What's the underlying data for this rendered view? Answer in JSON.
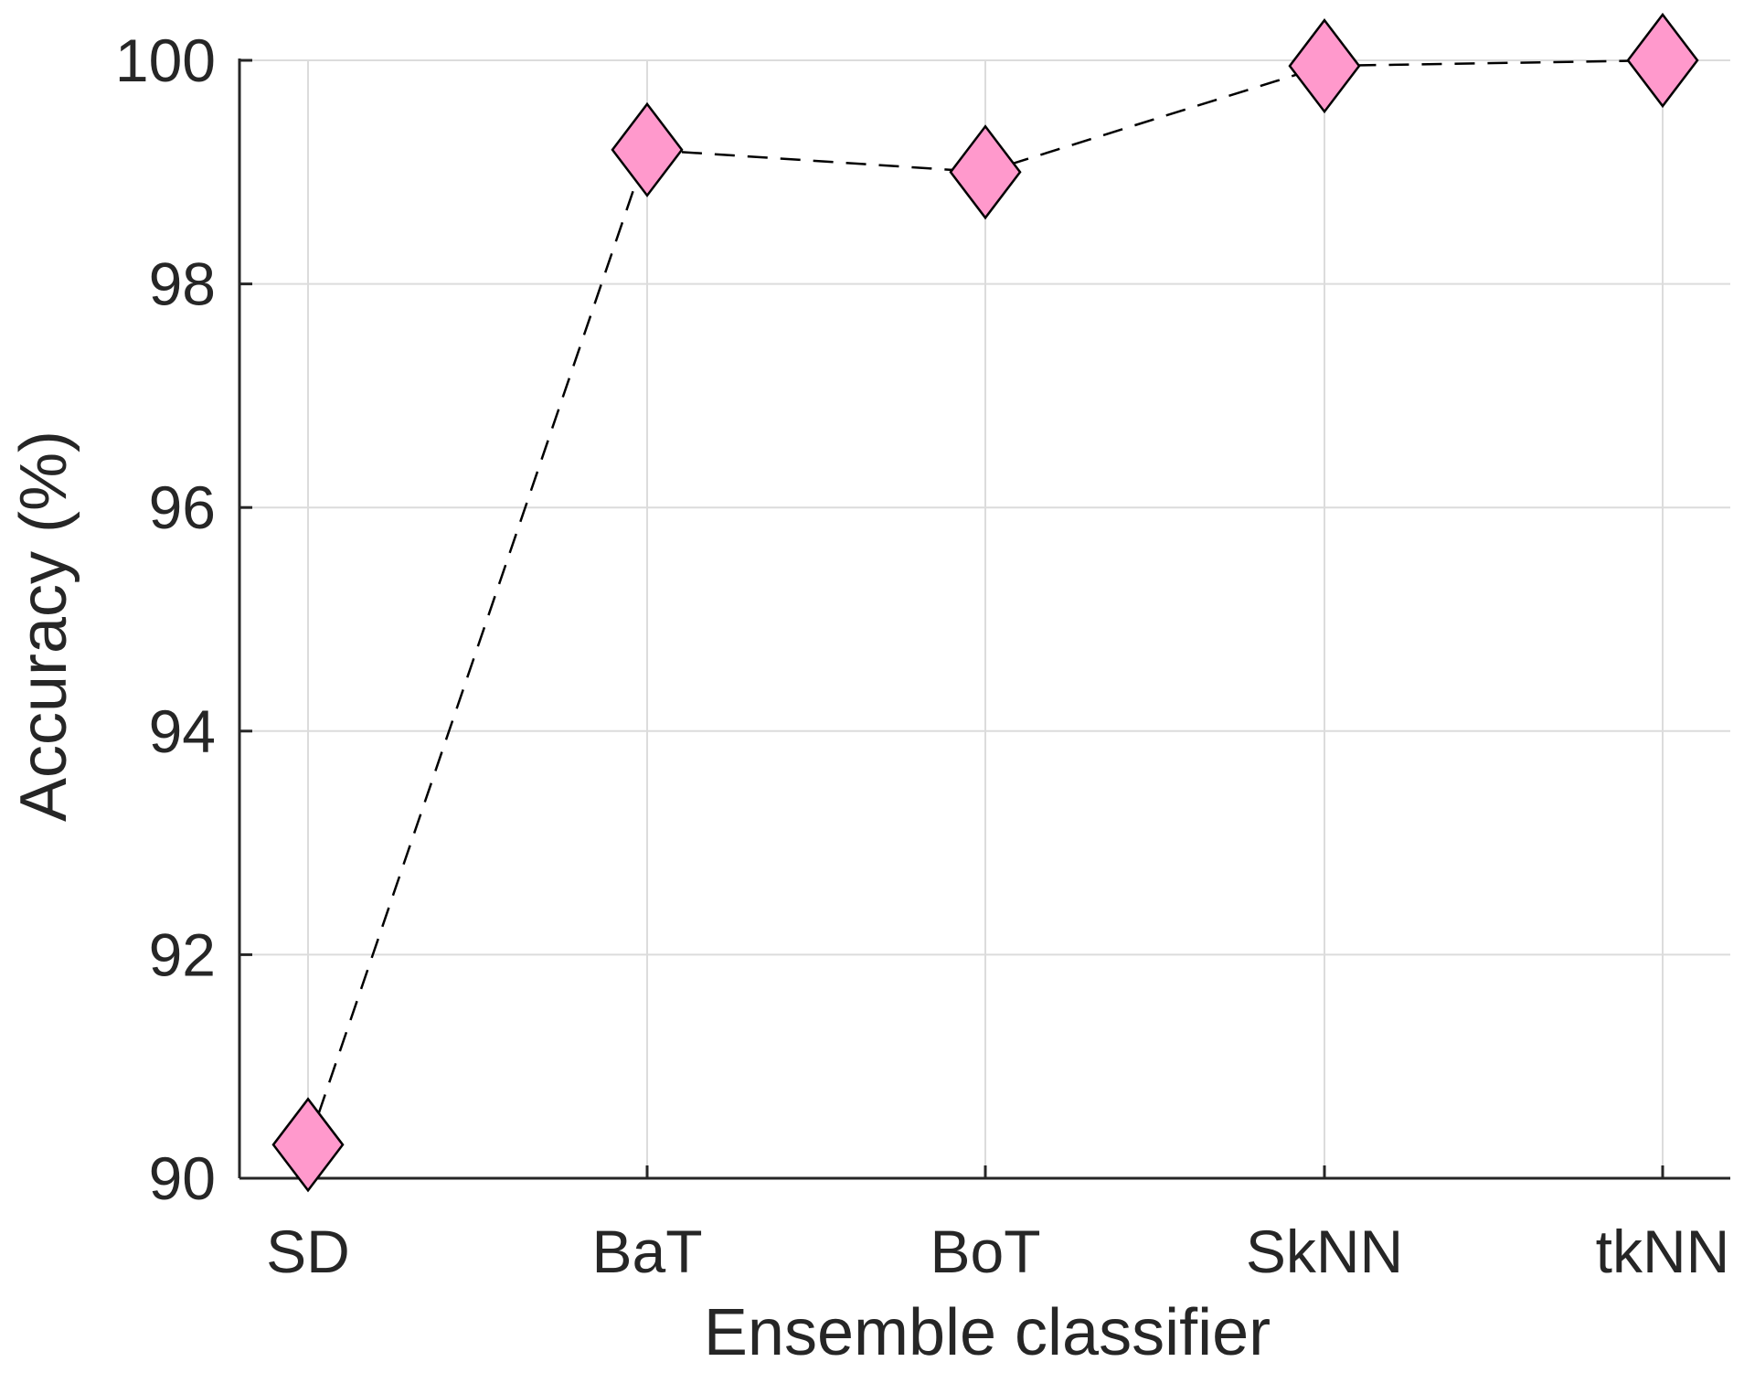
{
  "chart_data": {
    "type": "line",
    "categories": [
      "SD",
      "BaT",
      "BoT",
      "SkNN",
      "tkNN"
    ],
    "series": [
      {
        "values": [
          90.3,
          99.2,
          99.0,
          99.95,
          100.0
        ],
        "line_style": "dashed",
        "line_color": "#000000",
        "marker": "diamond",
        "marker_color": "#ff99cc"
      }
    ],
    "title": "",
    "xlabel": "Ensemble classifier",
    "ylabel": "Accuracy (%)",
    "ylim": [
      90,
      100
    ],
    "yticks": [
      90,
      92,
      94,
      96,
      98,
      100
    ],
    "grid": true,
    "legend": "none"
  }
}
